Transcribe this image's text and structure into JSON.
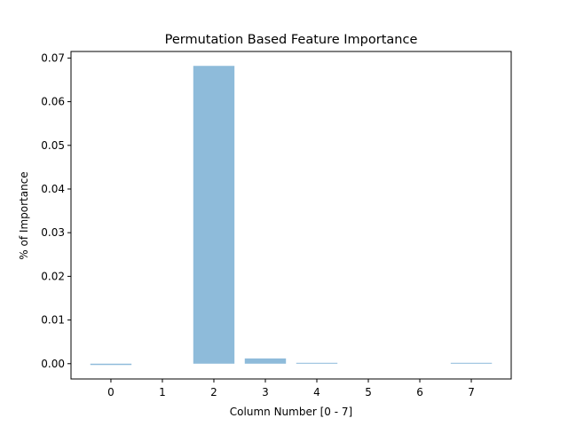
{
  "chart_data": {
    "type": "bar",
    "title": "Permutation Based Feature Importance",
    "xlabel": "Column Number [0 - 7]",
    "ylabel": "% of Importance",
    "categories": [
      "0",
      "1",
      "2",
      "3",
      "4",
      "5",
      "6",
      "7"
    ],
    "values": [
      -0.0003,
      0.0,
      0.0682,
      0.0012,
      0.0002,
      0.0,
      0.0,
      0.0002
    ],
    "yticks": [
      "0.00",
      "0.01",
      "0.02",
      "0.03",
      "0.04",
      "0.05",
      "0.06",
      "0.07"
    ],
    "ylim": [
      -0.0035,
      0.0715
    ],
    "grid": false,
    "bar_color": "#8ebbda"
  }
}
